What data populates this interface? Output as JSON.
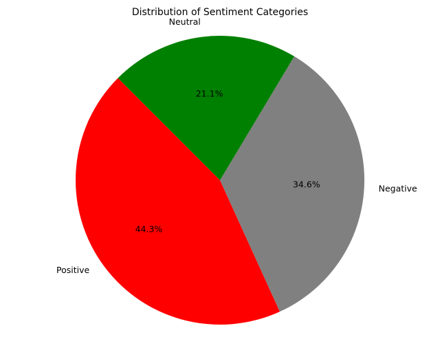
{
  "chart_data": {
    "type": "pie",
    "title": "Distribution of Sentiment Categories",
    "slices": [
      {
        "label": "Positive",
        "value": 44.3,
        "pct_label": "44.3%",
        "color": "#ff0000"
      },
      {
        "label": "Negative",
        "value": 34.6,
        "pct_label": "34.6%",
        "color": "#808080"
      },
      {
        "label": "Neutral",
        "value": 21.1,
        "pct_label": "21.1%",
        "color": "#008000"
      }
    ],
    "legend": "none",
    "grid": false
  }
}
